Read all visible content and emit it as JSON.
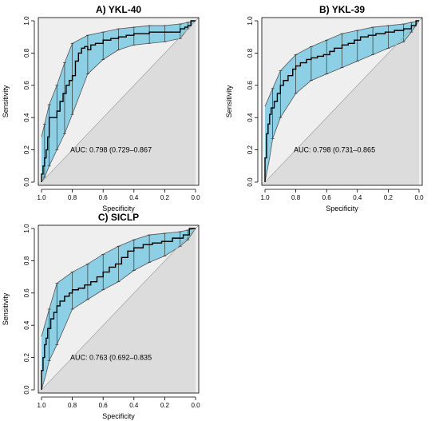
{
  "chart_data": [
    {
      "type": "line",
      "title": "A) YKL-40",
      "xlabel": "Specificity",
      "ylabel": "Sensitivity",
      "xlim": [
        1.0,
        0.0
      ],
      "ylim": [
        0.0,
        1.0
      ],
      "x_reversed": true,
      "x_ticks": [
        1.0,
        0.8,
        0.6,
        0.4,
        0.2,
        0.0
      ],
      "y_ticks": [
        0.0,
        0.2,
        0.4,
        0.6,
        0.8,
        1.0
      ],
      "x_tick_labels": [
        "1.0",
        "0.8",
        "0.6",
        "0.4",
        "0.2",
        "0.0"
      ],
      "y_tick_labels": [
        "0.0",
        "0.2",
        "0.4",
        "0.6",
        "0.8",
        "1.0"
      ],
      "annotation": "AUC: 0.798 (0.729–0.867",
      "series": [
        {
          "role": "roc",
          "x": [
            1.0,
            1.0,
            0.99,
            0.99,
            0.98,
            0.98,
            0.97,
            0.97,
            0.96,
            0.96,
            0.95,
            0.95,
            0.9,
            0.9,
            0.88,
            0.88,
            0.86,
            0.86,
            0.84,
            0.84,
            0.82,
            0.82,
            0.8,
            0.8,
            0.78,
            0.78,
            0.76,
            0.76,
            0.74,
            0.74,
            0.72,
            0.72,
            0.7,
            0.7,
            0.68,
            0.68,
            0.65,
            0.65,
            0.6,
            0.6,
            0.55,
            0.55,
            0.5,
            0.5,
            0.45,
            0.45,
            0.4,
            0.4,
            0.3,
            0.3,
            0.2,
            0.2,
            0.1,
            0.1,
            0.07,
            0.07,
            0.05,
            0.05,
            0.03,
            0.03,
            0.0
          ],
          "y": [
            0.0,
            0.05,
            0.05,
            0.1,
            0.1,
            0.15,
            0.15,
            0.2,
            0.2,
            0.28,
            0.28,
            0.4,
            0.4,
            0.44,
            0.44,
            0.5,
            0.5,
            0.55,
            0.55,
            0.6,
            0.6,
            0.63,
            0.63,
            0.66,
            0.66,
            0.75,
            0.75,
            0.8,
            0.8,
            0.83,
            0.83,
            0.84,
            0.84,
            0.82,
            0.82,
            0.85,
            0.85,
            0.86,
            0.86,
            0.88,
            0.88,
            0.89,
            0.89,
            0.9,
            0.9,
            0.91,
            0.91,
            0.92,
            0.92,
            0.93,
            0.93,
            0.93,
            0.93,
            0.95,
            0.95,
            0.96,
            0.96,
            0.97,
            0.97,
            1.0,
            1.0
          ]
        },
        {
          "role": "ci-upper",
          "x": [
            1.0,
            0.98,
            0.95,
            0.9,
            0.85,
            0.8,
            0.7,
            0.6,
            0.5,
            0.4,
            0.3,
            0.2,
            0.1,
            0.05,
            0.0
          ],
          "y": [
            0.28,
            0.36,
            0.48,
            0.6,
            0.74,
            0.86,
            0.91,
            0.93,
            0.95,
            0.96,
            0.97,
            0.97,
            0.98,
            0.99,
            1.0
          ]
        },
        {
          "role": "ci-lower",
          "x": [
            1.0,
            0.98,
            0.95,
            0.9,
            0.85,
            0.8,
            0.7,
            0.6,
            0.5,
            0.4,
            0.3,
            0.2,
            0.1,
            0.05,
            0.0
          ],
          "y": [
            0.0,
            0.03,
            0.1,
            0.2,
            0.3,
            0.42,
            0.67,
            0.76,
            0.82,
            0.85,
            0.86,
            0.87,
            0.89,
            0.95,
            1.0
          ]
        }
      ]
    },
    {
      "type": "line",
      "title": "B) YKL-39",
      "xlabel": "Specificity",
      "ylabel": "Sensitivity",
      "xlim": [
        1.0,
        0.0
      ],
      "ylim": [
        0.0,
        1.0
      ],
      "x_reversed": true,
      "x_ticks": [
        1.0,
        0.8,
        0.6,
        0.4,
        0.2,
        0.0
      ],
      "y_ticks": [
        0.0,
        0.2,
        0.4,
        0.6,
        0.8,
        1.0
      ],
      "x_tick_labels": [
        "1.0",
        "0.8",
        "0.6",
        "0.4",
        "0.2",
        "0.0"
      ],
      "y_tick_labels": [
        "0.0",
        "0.2",
        "0.4",
        "0.6",
        "0.8",
        "1.0"
      ],
      "annotation": "AUC: 0.798 (0.731–0.865",
      "series": [
        {
          "role": "roc",
          "x": [
            1.0,
            1.0,
            0.99,
            0.99,
            0.98,
            0.98,
            0.97,
            0.97,
            0.96,
            0.96,
            0.94,
            0.94,
            0.92,
            0.92,
            0.9,
            0.9,
            0.88,
            0.88,
            0.85,
            0.85,
            0.82,
            0.82,
            0.8,
            0.8,
            0.77,
            0.77,
            0.73,
            0.73,
            0.7,
            0.7,
            0.66,
            0.66,
            0.62,
            0.62,
            0.58,
            0.58,
            0.55,
            0.55,
            0.5,
            0.5,
            0.46,
            0.46,
            0.42,
            0.42,
            0.38,
            0.38,
            0.33,
            0.33,
            0.28,
            0.28,
            0.22,
            0.22,
            0.16,
            0.16,
            0.1,
            0.1,
            0.05,
            0.05,
            0.02,
            0.02,
            0.0
          ],
          "y": [
            0.0,
            0.15,
            0.15,
            0.3,
            0.3,
            0.36,
            0.36,
            0.42,
            0.42,
            0.46,
            0.46,
            0.5,
            0.5,
            0.55,
            0.55,
            0.6,
            0.6,
            0.63,
            0.63,
            0.66,
            0.66,
            0.7,
            0.7,
            0.72,
            0.72,
            0.74,
            0.74,
            0.76,
            0.76,
            0.77,
            0.77,
            0.78,
            0.78,
            0.79,
            0.79,
            0.81,
            0.81,
            0.83,
            0.83,
            0.85,
            0.85,
            0.86,
            0.86,
            0.88,
            0.88,
            0.9,
            0.9,
            0.91,
            0.91,
            0.92,
            0.92,
            0.93,
            0.93,
            0.94,
            0.94,
            0.95,
            0.95,
            0.97,
            0.97,
            1.0,
            1.0
          ]
        },
        {
          "role": "ci-upper",
          "x": [
            1.0,
            0.95,
            0.9,
            0.8,
            0.7,
            0.6,
            0.5,
            0.4,
            0.3,
            0.2,
            0.1,
            0.05,
            0.0
          ],
          "y": [
            0.47,
            0.58,
            0.69,
            0.79,
            0.84,
            0.88,
            0.92,
            0.94,
            0.96,
            0.97,
            0.98,
            0.99,
            1.0
          ]
        },
        {
          "role": "ci-lower",
          "x": [
            1.0,
            0.97,
            0.95,
            0.9,
            0.8,
            0.7,
            0.6,
            0.5,
            0.4,
            0.3,
            0.2,
            0.1,
            0.05,
            0.0
          ],
          "y": [
            0.0,
            0.15,
            0.27,
            0.4,
            0.55,
            0.63,
            0.67,
            0.71,
            0.75,
            0.79,
            0.83,
            0.87,
            0.93,
            1.0
          ]
        }
      ]
    },
    {
      "type": "line",
      "title": "C) SICLP",
      "xlabel": "Specificity",
      "ylabel": "Sensitivity",
      "xlim": [
        1.0,
        0.0
      ],
      "ylim": [
        0.0,
        1.0
      ],
      "x_reversed": true,
      "x_ticks": [
        1.0,
        0.8,
        0.6,
        0.4,
        0.2,
        0.0
      ],
      "y_ticks": [
        0.0,
        0.2,
        0.4,
        0.6,
        0.8,
        1.0
      ],
      "x_tick_labels": [
        "1.0",
        "0.8",
        "0.6",
        "0.4",
        "0.2",
        "0.0"
      ],
      "y_tick_labels": [
        "0.0",
        "0.2",
        "0.4",
        "0.6",
        "0.8",
        "1.0"
      ],
      "annotation": "AUC: 0.763 (0.692–0.835",
      "series": [
        {
          "role": "roc",
          "x": [
            1.0,
            1.0,
            0.99,
            0.99,
            0.98,
            0.98,
            0.97,
            0.97,
            0.96,
            0.96,
            0.94,
            0.94,
            0.92,
            0.92,
            0.9,
            0.9,
            0.88,
            0.88,
            0.85,
            0.85,
            0.82,
            0.82,
            0.8,
            0.8,
            0.76,
            0.76,
            0.72,
            0.72,
            0.68,
            0.68,
            0.64,
            0.64,
            0.6,
            0.6,
            0.56,
            0.56,
            0.52,
            0.52,
            0.48,
            0.48,
            0.44,
            0.44,
            0.4,
            0.4,
            0.34,
            0.34,
            0.28,
            0.28,
            0.22,
            0.22,
            0.15,
            0.15,
            0.08,
            0.08,
            0.04,
            0.04,
            0.0
          ],
          "y": [
            0.0,
            0.12,
            0.12,
            0.2,
            0.2,
            0.28,
            0.28,
            0.32,
            0.32,
            0.38,
            0.38,
            0.44,
            0.44,
            0.48,
            0.48,
            0.52,
            0.52,
            0.55,
            0.55,
            0.58,
            0.58,
            0.6,
            0.6,
            0.62,
            0.62,
            0.63,
            0.63,
            0.65,
            0.65,
            0.67,
            0.67,
            0.7,
            0.7,
            0.73,
            0.73,
            0.76,
            0.76,
            0.78,
            0.78,
            0.82,
            0.82,
            0.86,
            0.86,
            0.88,
            0.88,
            0.9,
            0.9,
            0.91,
            0.91,
            0.92,
            0.92,
            0.94,
            0.94,
            0.96,
            0.96,
            1.0,
            1.0
          ]
        },
        {
          "role": "ci-upper",
          "x": [
            1.0,
            0.95,
            0.9,
            0.8,
            0.7,
            0.6,
            0.5,
            0.4,
            0.3,
            0.2,
            0.1,
            0.05,
            0.0
          ],
          "y": [
            0.33,
            0.5,
            0.66,
            0.73,
            0.78,
            0.84,
            0.89,
            0.93,
            0.96,
            0.97,
            0.98,
            0.99,
            1.0
          ]
        },
        {
          "role": "ci-lower",
          "x": [
            1.0,
            0.97,
            0.95,
            0.9,
            0.8,
            0.7,
            0.6,
            0.5,
            0.4,
            0.3,
            0.2,
            0.1,
            0.05,
            0.0
          ],
          "y": [
            0.0,
            0.1,
            0.18,
            0.28,
            0.5,
            0.56,
            0.62,
            0.67,
            0.74,
            0.79,
            0.83,
            0.89,
            0.93,
            1.0
          ]
        }
      ]
    }
  ],
  "colors": {
    "ci_fill": "#8dd0e5",
    "outer_background": "#efefef",
    "lower_triangle": "#dcdcdc",
    "diagonal": "#a9a9a9",
    "roc_line": "#000000"
  }
}
